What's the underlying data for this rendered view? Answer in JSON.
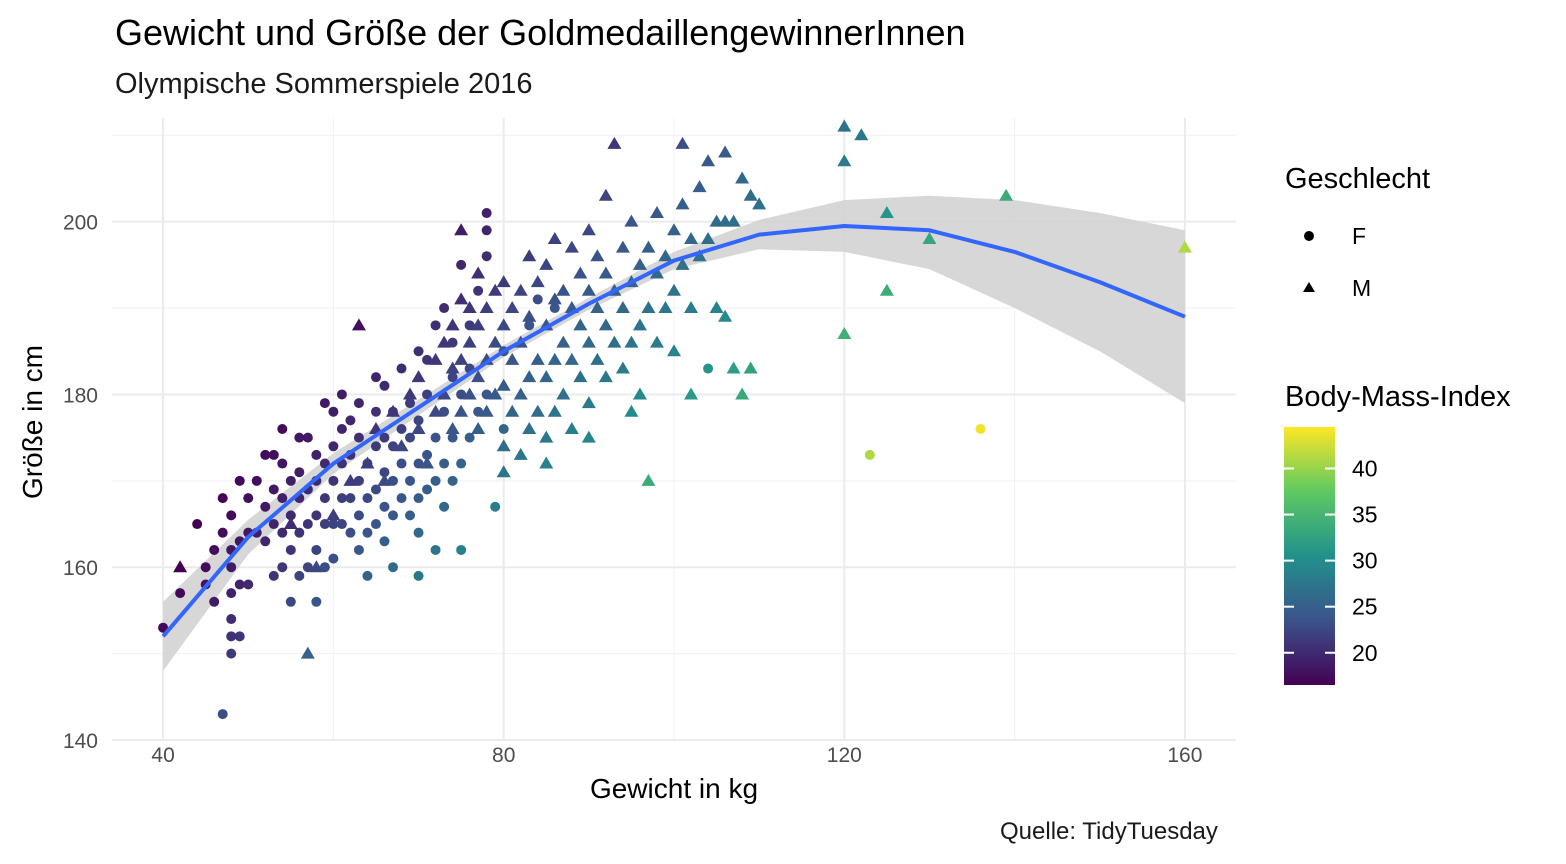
{
  "chart_data": {
    "type": "scatter",
    "title": "Gewicht und Größe der GoldmedaillengewinnerInnen",
    "subtitle": "Olympische Sommerspiele 2016",
    "caption": "Quelle: TidyTuesday",
    "xlabel": "Gewicht in kg",
    "ylabel": "Größe in cm",
    "xlim": [
      34,
      166
    ],
    "ylim": [
      140,
      212
    ],
    "x_ticks": [
      40,
      80,
      120,
      160
    ],
    "y_ticks": [
      140,
      160,
      180,
      200
    ],
    "grid": true,
    "legend": {
      "shape_title": "Geschlecht",
      "shape_entries": [
        {
          "label": "F",
          "shape": "circle"
        },
        {
          "label": "M",
          "shape": "triangle"
        }
      ],
      "color_title": "Body-Mass-Index",
      "color_ticks": [
        20,
        25,
        30,
        35,
        40
      ],
      "color_range": [
        16.5,
        44.5
      ],
      "colormap": [
        "#440154",
        "#3b528b",
        "#21918c",
        "#5ec962",
        "#fde725"
      ]
    },
    "smooth": {
      "color": "#3366ff",
      "band_color": "#d3d3d3",
      "x": [
        40,
        50,
        60,
        70,
        80,
        90,
        100,
        110,
        120,
        130,
        140,
        150,
        160
      ],
      "y": [
        152.0,
        163.5,
        172.0,
        178.5,
        185.0,
        190.5,
        195.5,
        198.5,
        199.5,
        199.0,
        196.5,
        193.0,
        189.0
      ],
      "lower": [
        148.0,
        161.5,
        170.8,
        177.6,
        184.3,
        189.8,
        194.5,
        196.8,
        196.5,
        194.5,
        190.0,
        185.0,
        179.0
      ],
      "upper": [
        156.0,
        165.5,
        173.2,
        179.4,
        185.7,
        191.2,
        196.5,
        200.2,
        202.5,
        203.0,
        202.5,
        201.0,
        199.0
      ]
    },
    "series": [
      {
        "name": "F",
        "shape": "circle",
        "points": [
          [
            40,
            153
          ],
          [
            42,
            157
          ],
          [
            44,
            165
          ],
          [
            45,
            158
          ],
          [
            45,
            160
          ],
          [
            46,
            156
          ],
          [
            46,
            162
          ],
          [
            47,
            143
          ],
          [
            47,
            164
          ],
          [
            47,
            168
          ],
          [
            48,
            150
          ],
          [
            48,
            152
          ],
          [
            48,
            154
          ],
          [
            48,
            157
          ],
          [
            48,
            160
          ],
          [
            48,
            162
          ],
          [
            48,
            166
          ],
          [
            49,
            152
          ],
          [
            49,
            158
          ],
          [
            49,
            163
          ],
          [
            49,
            170
          ],
          [
            50,
            158
          ],
          [
            50,
            164
          ],
          [
            50,
            168
          ],
          [
            51,
            164
          ],
          [
            51,
            170
          ],
          [
            52,
            163
          ],
          [
            52,
            167
          ],
          [
            52,
            173
          ],
          [
            53,
            159
          ],
          [
            53,
            165
          ],
          [
            53,
            169
          ],
          [
            53,
            173
          ],
          [
            54,
            160
          ],
          [
            54,
            164
          ],
          [
            54,
            168
          ],
          [
            54,
            172
          ],
          [
            54,
            176
          ],
          [
            55,
            156
          ],
          [
            55,
            162
          ],
          [
            55,
            166
          ],
          [
            55,
            170
          ],
          [
            56,
            159
          ],
          [
            56,
            164
          ],
          [
            56,
            168
          ],
          [
            56,
            171
          ],
          [
            56,
            175
          ],
          [
            57,
            160
          ],
          [
            57,
            165
          ],
          [
            57,
            169
          ],
          [
            57,
            175
          ],
          [
            58,
            156
          ],
          [
            58,
            162
          ],
          [
            58,
            166
          ],
          [
            58,
            170
          ],
          [
            58,
            173
          ],
          [
            59,
            160
          ],
          [
            59,
            165
          ],
          [
            59,
            168
          ],
          [
            59,
            172
          ],
          [
            59,
            179
          ],
          [
            60,
            161
          ],
          [
            60,
            165
          ],
          [
            60,
            170
          ],
          [
            60,
            174
          ],
          [
            60,
            178
          ],
          [
            61,
            165
          ],
          [
            61,
            168
          ],
          [
            61,
            172
          ],
          [
            61,
            176
          ],
          [
            61,
            180
          ],
          [
            62,
            164
          ],
          [
            62,
            168
          ],
          [
            62,
            173
          ],
          [
            62,
            177
          ],
          [
            63,
            162
          ],
          [
            63,
            166
          ],
          [
            63,
            170
          ],
          [
            63,
            175
          ],
          [
            63,
            179
          ],
          [
            64,
            159
          ],
          [
            64,
            164
          ],
          [
            64,
            168
          ],
          [
            64,
            172
          ],
          [
            65,
            165
          ],
          [
            65,
            169
          ],
          [
            65,
            174
          ],
          [
            65,
            178
          ],
          [
            65,
            182
          ],
          [
            66,
            163
          ],
          [
            66,
            167
          ],
          [
            66,
            171
          ],
          [
            66,
            175
          ],
          [
            66,
            181
          ],
          [
            67,
            160
          ],
          [
            67,
            166
          ],
          [
            67,
            170
          ],
          [
            67,
            174
          ],
          [
            67,
            178
          ],
          [
            68,
            168
          ],
          [
            68,
            172
          ],
          [
            68,
            176
          ],
          [
            68,
            183
          ],
          [
            69,
            166
          ],
          [
            69,
            170
          ],
          [
            69,
            175
          ],
          [
            69,
            179
          ],
          [
            70,
            159
          ],
          [
            70,
            164
          ],
          [
            70,
            168
          ],
          [
            70,
            172
          ],
          [
            70,
            177
          ],
          [
            70,
            185
          ],
          [
            71,
            169
          ],
          [
            71,
            173
          ],
          [
            71,
            180
          ],
          [
            71,
            184
          ],
          [
            72,
            162
          ],
          [
            72,
            170
          ],
          [
            72,
            175
          ],
          [
            72,
            188
          ],
          [
            73,
            167
          ],
          [
            73,
            172
          ],
          [
            73,
            178
          ],
          [
            73,
            190
          ],
          [
            74,
            170
          ],
          [
            74,
            175
          ],
          [
            74,
            182
          ],
          [
            74,
            186
          ],
          [
            75,
            162
          ],
          [
            75,
            172
          ],
          [
            75,
            180
          ],
          [
            75,
            195
          ],
          [
            76,
            175
          ],
          [
            76,
            183
          ],
          [
            76,
            188
          ],
          [
            77,
            178
          ],
          [
            77,
            192
          ],
          [
            78,
            180
          ],
          [
            78,
            196
          ],
          [
            78,
            199
          ],
          [
            78,
            201
          ],
          [
            80,
            176
          ],
          [
            80,
            185
          ],
          [
            83,
            188
          ],
          [
            84,
            191
          ],
          [
            86,
            190
          ],
          [
            79,
            167
          ],
          [
            104,
            183
          ],
          [
            123,
            173
          ],
          [
            136,
            176
          ]
        ]
      },
      {
        "name": "M",
        "shape": "triangle",
        "points": [
          [
            42,
            160
          ],
          [
            55,
            165
          ],
          [
            57,
            150
          ],
          [
            63,
            188
          ],
          [
            58,
            160
          ],
          [
            60,
            166
          ],
          [
            62,
            170
          ],
          [
            64,
            172
          ],
          [
            65,
            176
          ],
          [
            66,
            170
          ],
          [
            67,
            178
          ],
          [
            68,
            174
          ],
          [
            69,
            180
          ],
          [
            70,
            176
          ],
          [
            70,
            182
          ],
          [
            71,
            172
          ],
          [
            72,
            178
          ],
          [
            72,
            184
          ],
          [
            73,
            180
          ],
          [
            73,
            186
          ],
          [
            74,
            176
          ],
          [
            74,
            183
          ],
          [
            74,
            188
          ],
          [
            75,
            178
          ],
          [
            75,
            184
          ],
          [
            75,
            191
          ],
          [
            75,
            199
          ],
          [
            76,
            180
          ],
          [
            76,
            186
          ],
          [
            76,
            190
          ],
          [
            77,
            176
          ],
          [
            77,
            182
          ],
          [
            77,
            188
          ],
          [
            77,
            194
          ],
          [
            78,
            178
          ],
          [
            78,
            184
          ],
          [
            78,
            190
          ],
          [
            79,
            180
          ],
          [
            79,
            186
          ],
          [
            79,
            192
          ],
          [
            80,
            174
          ],
          [
            80,
            181
          ],
          [
            80,
            188
          ],
          [
            80,
            193
          ],
          [
            81,
            178
          ],
          [
            81,
            184
          ],
          [
            81,
            190
          ],
          [
            82,
            173
          ],
          [
            82,
            180
          ],
          [
            82,
            186
          ],
          [
            82,
            192
          ],
          [
            83,
            176
          ],
          [
            83,
            182
          ],
          [
            83,
            189
          ],
          [
            83,
            196
          ],
          [
            84,
            178
          ],
          [
            84,
            184
          ],
          [
            84,
            193
          ],
          [
            85,
            175
          ],
          [
            85,
            182
          ],
          [
            85,
            188
          ],
          [
            85,
            195
          ],
          [
            86,
            178
          ],
          [
            86,
            184
          ],
          [
            86,
            191
          ],
          [
            86,
            198
          ],
          [
            87,
            180
          ],
          [
            87,
            186
          ],
          [
            87,
            192
          ],
          [
            88,
            176
          ],
          [
            88,
            184
          ],
          [
            88,
            190
          ],
          [
            88,
            197
          ],
          [
            89,
            182
          ],
          [
            89,
            188
          ],
          [
            89,
            194
          ],
          [
            90,
            179
          ],
          [
            90,
            186
          ],
          [
            90,
            192
          ],
          [
            90,
            199
          ],
          [
            91,
            184
          ],
          [
            91,
            190
          ],
          [
            91,
            196
          ],
          [
            92,
            182
          ],
          [
            92,
            188
          ],
          [
            92,
            194
          ],
          [
            92,
            203
          ],
          [
            93,
            186
          ],
          [
            93,
            192
          ],
          [
            93,
            209
          ],
          [
            94,
            183
          ],
          [
            94,
            190
          ],
          [
            94,
            197
          ],
          [
            95,
            186
          ],
          [
            95,
            193
          ],
          [
            95,
            200
          ],
          [
            96,
            180
          ],
          [
            96,
            188
          ],
          [
            96,
            195
          ],
          [
            97,
            170
          ],
          [
            97,
            190
          ],
          [
            97,
            197
          ],
          [
            98,
            186
          ],
          [
            98,
            194
          ],
          [
            98,
            201
          ],
          [
            99,
            190
          ],
          [
            99,
            196
          ],
          [
            100,
            185
          ],
          [
            100,
            192
          ],
          [
            100,
            199
          ],
          [
            101,
            195
          ],
          [
            101,
            202
          ],
          [
            101,
            209
          ],
          [
            102,
            190
          ],
          [
            102,
            198
          ],
          [
            103,
            196
          ],
          [
            103,
            204
          ],
          [
            104,
            198
          ],
          [
            104,
            207
          ],
          [
            105,
            190
          ],
          [
            105,
            200
          ],
          [
            106,
            189
          ],
          [
            106,
            200
          ],
          [
            106,
            208
          ],
          [
            107,
            183
          ],
          [
            107,
            200
          ],
          [
            108,
            205
          ],
          [
            109,
            183
          ],
          [
            109,
            203
          ],
          [
            110,
            202
          ],
          [
            102,
            180
          ],
          [
            108,
            180
          ],
          [
            95,
            178
          ],
          [
            90,
            175
          ],
          [
            85,
            172
          ],
          [
            80,
            171
          ],
          [
            120,
            187
          ],
          [
            120,
            207
          ],
          [
            120,
            211
          ],
          [
            122,
            210
          ],
          [
            125,
            192
          ],
          [
            125,
            201
          ],
          [
            130,
            198
          ],
          [
            139,
            203
          ],
          [
            160,
            197
          ]
        ]
      }
    ]
  }
}
